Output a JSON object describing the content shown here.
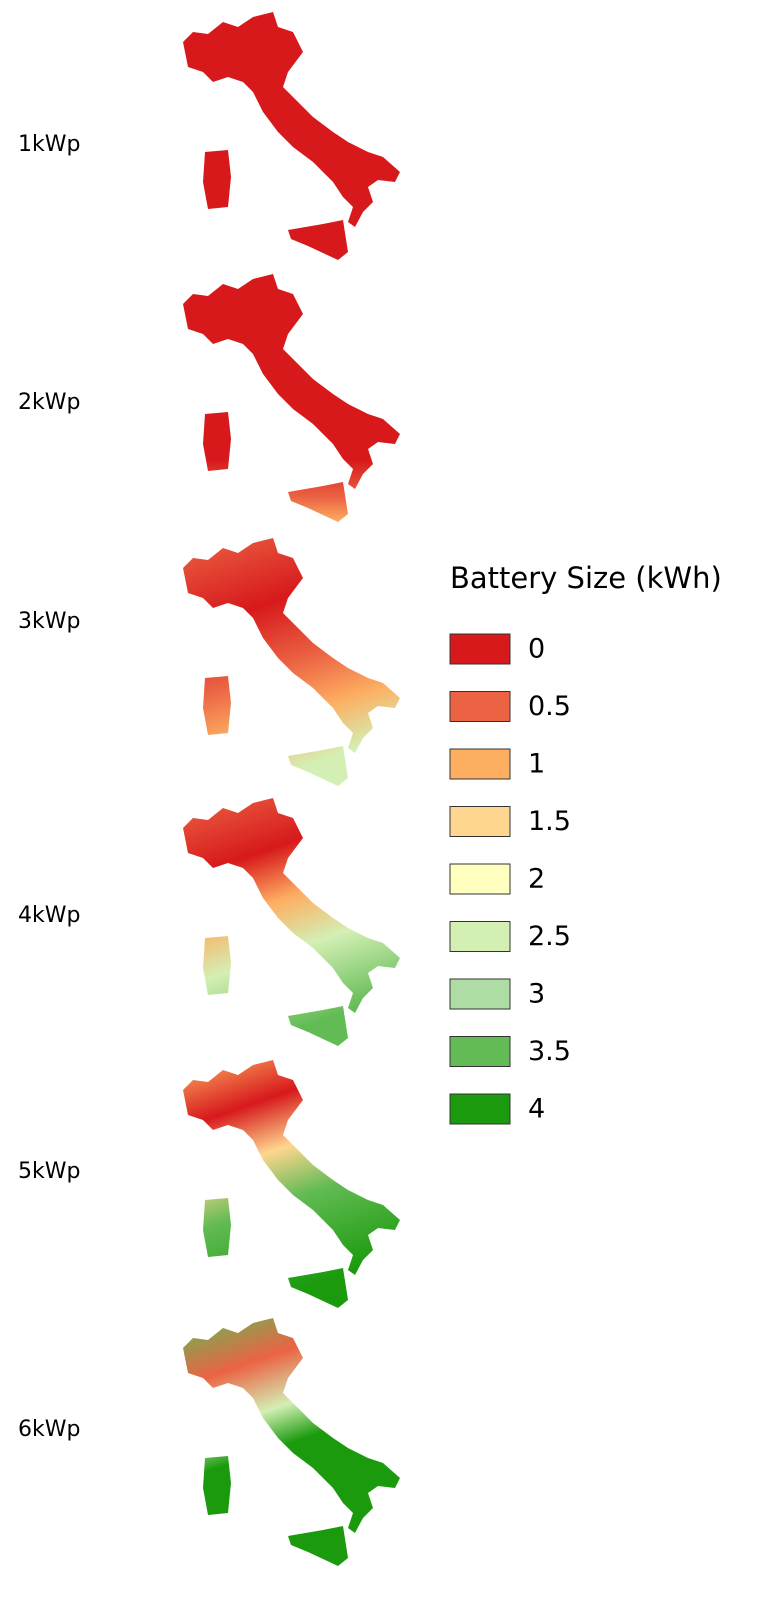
{
  "panels": [
    {
      "label": "1kWp"
    },
    {
      "label": "2kWp"
    },
    {
      "label": "3kWp"
    },
    {
      "label": "4kWp"
    },
    {
      "label": "5kWp"
    },
    {
      "label": "6kWp"
    }
  ],
  "legend": {
    "title": "Battery Size (kWh)",
    "items": [
      {
        "label": 0,
        "color": "#d7191c"
      },
      {
        "label": 0.5,
        "color": "#eb6343"
      },
      {
        "label": 1,
        "color": "#fdae61"
      },
      {
        "label": 1.5,
        "color": "#fed68f"
      },
      {
        "label": 2,
        "color": "#ffffc0"
      },
      {
        "label": 2.5,
        "color": "#d3efb4"
      },
      {
        "label": 3,
        "color": "#addca4"
      },
      {
        "label": 3.5,
        "color": "#62bb54"
      },
      {
        "label": 4,
        "color": "#1a9a0c"
      }
    ]
  }
}
